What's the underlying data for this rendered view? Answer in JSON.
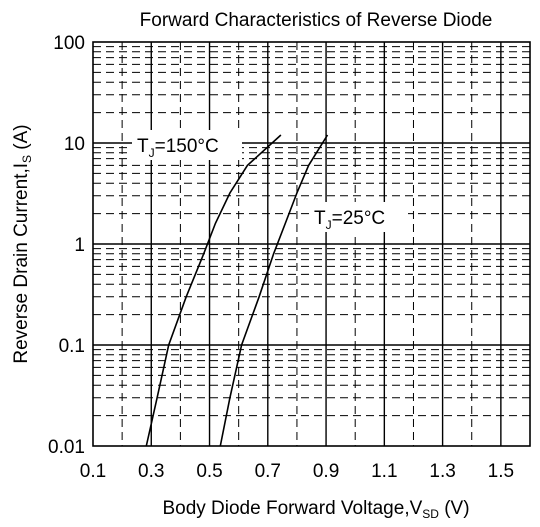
{
  "chart_data": {
    "type": "line",
    "title": "Forward Characteristics of Reverse Diode",
    "xlabel": {
      "main": "Body Diode Forward Voltage,V",
      "sub": "SD",
      "unit": " (V)"
    },
    "ylabel": {
      "main": "Reverse Drain Current,I",
      "sub": "S",
      "unit": " (A)"
    },
    "x_scale": "linear",
    "y_scale": "log",
    "xlim": [
      0.1,
      1.6
    ],
    "ylim": [
      0.01,
      100
    ],
    "x_ticks": [
      "0.1",
      "0.3",
      "0.5",
      "0.7",
      "0.9",
      "1.1",
      "1.3",
      "1.5"
    ],
    "y_ticks": [
      "100",
      "10",
      "1",
      "0.1",
      "0.01"
    ],
    "grid": true,
    "series": [
      {
        "name": "T_J=150°C",
        "label_main": "T",
        "label_sub": "J",
        "label_rest": "=150°C",
        "color": "#000000",
        "points": [
          [
            0.283,
            0.01
          ],
          [
            0.32,
            0.03
          ],
          [
            0.36,
            0.1
          ],
          [
            0.42,
            0.3
          ],
          [
            0.48,
            0.8
          ],
          [
            0.52,
            1.6
          ],
          [
            0.57,
            3.2
          ],
          [
            0.63,
            6.0
          ],
          [
            0.745,
            12.0
          ]
        ]
      },
      {
        "name": "T_J=25°C",
        "label_main": "T",
        "label_sub": "J",
        "label_rest": "=25°C",
        "color": "#000000",
        "points": [
          [
            0.537,
            0.01
          ],
          [
            0.57,
            0.03
          ],
          [
            0.61,
            0.1
          ],
          [
            0.67,
            0.3
          ],
          [
            0.72,
            0.8
          ],
          [
            0.76,
            1.6
          ],
          [
            0.8,
            3.2
          ],
          [
            0.84,
            6.0
          ],
          [
            0.905,
            12.0
          ]
        ]
      }
    ]
  }
}
